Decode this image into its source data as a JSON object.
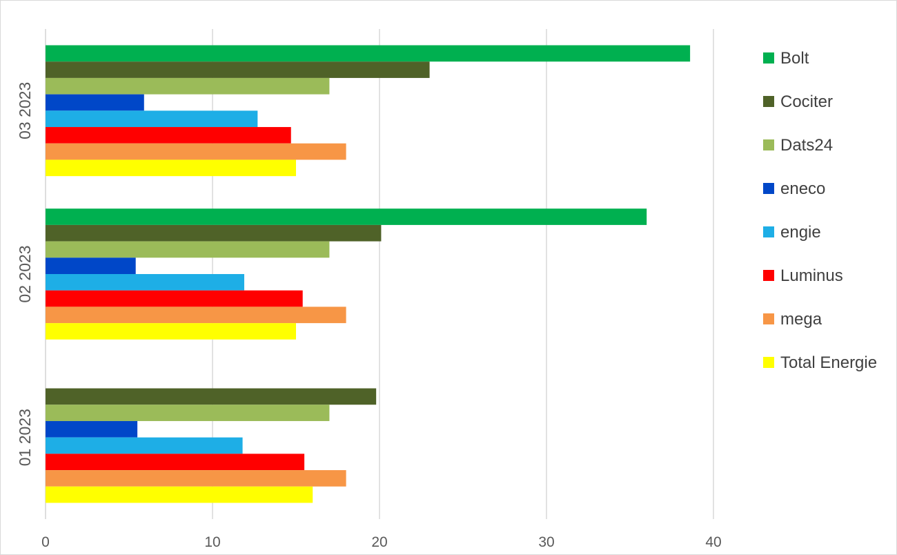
{
  "chart_data": {
    "type": "bar",
    "orientation": "horizontal",
    "title": "",
    "xlabel": "",
    "ylabel": "",
    "xlim": [
      0,
      40
    ],
    "x_ticks": [
      "0",
      "10",
      "20",
      "30",
      "40"
    ],
    "grid": true,
    "legend_position": "right",
    "categories": [
      "01 2023",
      "02 2023",
      "03 2023"
    ],
    "series": [
      {
        "name": "Bolt",
        "color": "#00b050",
        "values": [
          null,
          36.0,
          38.6
        ]
      },
      {
        "name": "Cociter",
        "color": "#4f6228",
        "values": [
          19.8,
          20.1,
          23.0
        ]
      },
      {
        "name": "Dats24",
        "color": "#9bbb59",
        "values": [
          17.0,
          17.0,
          17.0
        ]
      },
      {
        "name": "eneco",
        "color": "#0047c8",
        "values": [
          5.5,
          5.4,
          5.9
        ]
      },
      {
        "name": "engie",
        "color": "#1eaee6",
        "values": [
          11.8,
          11.9,
          12.7
        ]
      },
      {
        "name": "Luminus",
        "color": "#ff0000",
        "values": [
          15.5,
          15.4,
          14.7
        ]
      },
      {
        "name": "mega",
        "color": "#f79646",
        "values": [
          18.0,
          18.0,
          18.0
        ]
      },
      {
        "name": "Total Energie",
        "color": "#ffff00",
        "values": [
          16.0,
          15.0,
          15.0
        ]
      }
    ]
  }
}
